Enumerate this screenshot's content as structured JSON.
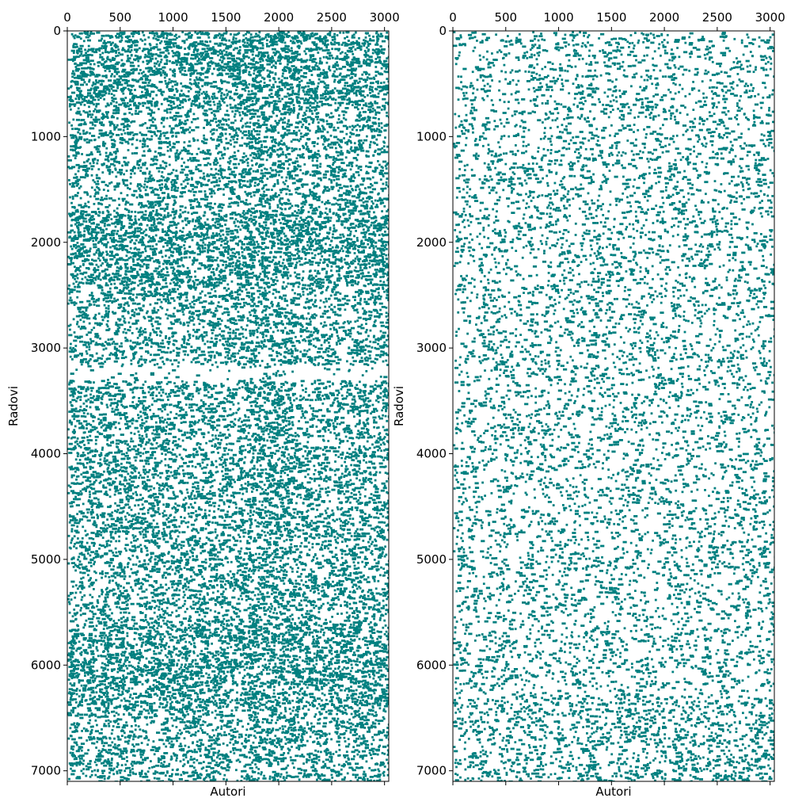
{
  "chart_data": [
    {
      "type": "scatter",
      "subtype": "sparsity-pattern",
      "xlabel": "Autori",
      "ylabel": "Radovi",
      "xlim": [
        0,
        3040
      ],
      "ylim": [
        7100,
        0
      ],
      "xticks": [
        0,
        500,
        1000,
        1500,
        2000,
        2500,
        3000
      ],
      "xtick_labels": [
        "0",
        "500",
        "1000",
        "1500",
        "2000",
        "2500",
        "3000"
      ],
      "yticks": [
        0,
        1000,
        2000,
        3000,
        4000,
        5000,
        6000,
        7000
      ],
      "ytick_labels": [
        "0",
        "1000",
        "2000",
        "3000",
        "4000",
        "5000",
        "6000",
        "7000"
      ],
      "x_axis_position": "top",
      "y_axis_inverted": true,
      "grid": false,
      "marker_color": "#008080",
      "density": "high",
      "dense_x_bands": [
        [
          1700,
          2100
        ]
      ],
      "dense_y_bands": [
        [
          0,
          700
        ],
        [
          1700,
          2400
        ],
        [
          5600,
          6400
        ]
      ],
      "sparse_y_bands": [
        [
          3150,
          3300
        ]
      ]
    },
    {
      "type": "scatter",
      "subtype": "sparsity-pattern",
      "xlabel": "Autori",
      "ylabel": "Radovi",
      "xlim": [
        0,
        3040
      ],
      "ylim": [
        7100,
        0
      ],
      "xticks": [
        0,
        500,
        1000,
        1500,
        2000,
        2500,
        3000
      ],
      "xtick_labels": [
        "0",
        "500",
        "1000",
        "1500",
        "2000",
        "2500",
        "3000"
      ],
      "yticks": [
        0,
        1000,
        2000,
        3000,
        4000,
        5000,
        6000,
        7000
      ],
      "ytick_labels": [
        "0",
        "1000",
        "2000",
        "3000",
        "4000",
        "5000",
        "6000",
        "7000"
      ],
      "x_axis_position": "top",
      "y_axis_inverted": true,
      "grid": false,
      "marker_color": "#008080",
      "density": "medium",
      "dense_x_bands": [],
      "dense_y_bands": [
        [
          6300,
          7100
        ]
      ],
      "sparse_y_bands": []
    }
  ]
}
